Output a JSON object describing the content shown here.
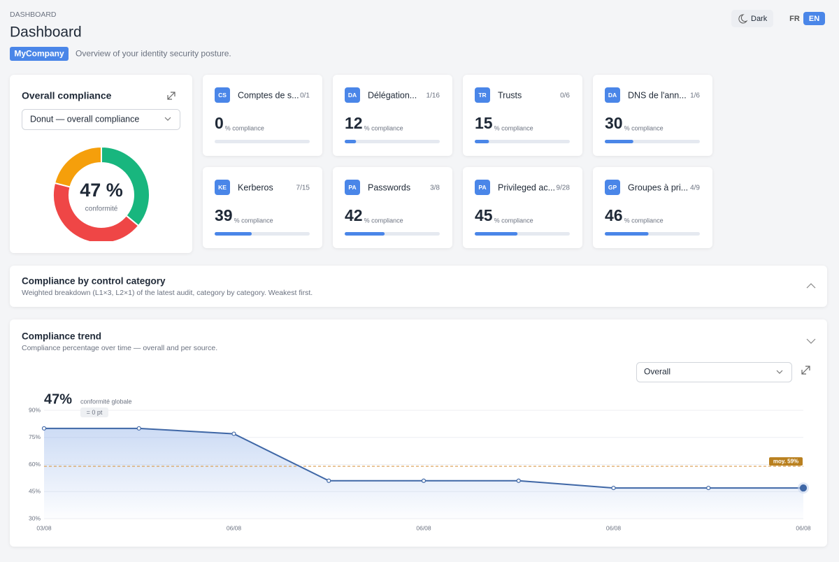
{
  "header": {
    "breadcrumb": "DASHBOARD",
    "title": "Dashboard",
    "company": "MyCompany",
    "subtitle": "Overview of your identity security posture."
  },
  "controls": {
    "theme": "Dark",
    "languages": [
      "FR",
      "EN"
    ],
    "active_language": 1
  },
  "cards": [
    {
      "badge": "CS",
      "name": "Comptes de s...",
      "ratio": "0/1",
      "value": 0,
      "unit": "% compliance"
    },
    {
      "badge": "DA",
      "name": "Délégation...",
      "ratio": "1/16",
      "value": 12,
      "unit": "% compliance"
    },
    {
      "badge": "TR",
      "name": "Trusts",
      "ratio": "0/6",
      "value": 15,
      "unit": "% compliance"
    },
    {
      "badge": "DA",
      "name": "DNS de l'ann...",
      "ratio": "1/6",
      "value": 30,
      "unit": "% compliance"
    },
    {
      "badge": "KE",
      "name": "Kerberos",
      "ratio": "7/15",
      "value": 39,
      "unit": "% compliance"
    },
    {
      "badge": "PA",
      "name": "Passwords",
      "ratio": "3/8",
      "value": 42,
      "unit": "% compliance"
    },
    {
      "badge": "PA",
      "name": "Privileged ac...",
      "ratio": "9/28",
      "value": 45,
      "unit": "% compliance"
    },
    {
      "badge": "GP",
      "name": "Groupes à pri...",
      "ratio": "4/9",
      "value": 46,
      "unit": "% compliance"
    }
  ],
  "category_section": {
    "title": "Compliance by control category",
    "subtitle": "Weighted breakdown (L1×3, L2×1) of the latest audit, category by category. Weakest first."
  },
  "chart_data": [
    {
      "type": "donut",
      "title": "Overall compliance",
      "selector": "Donut — overall compliance",
      "center_label": "47 %",
      "center_caption": "conformité",
      "values": [
        36,
        43,
        21
      ],
      "colors": [
        "#18b67e",
        "#ef4646",
        "#f59f0b"
      ]
    },
    {
      "type": "line",
      "title": "Compliance trend",
      "subtitle": "Compliance percentage over time — overall and per source.",
      "selector": "Overall",
      "headline": "47%",
      "headline_caption": "conformité globale",
      "delta": "= 0 pt",
      "categories": [
        "03/08",
        null,
        "06/08",
        null,
        "06/08",
        null,
        "06/08",
        null,
        "06/08"
      ],
      "values": [
        80,
        80,
        77,
        51,
        51,
        51,
        47,
        47,
        47
      ],
      "color": "#3f67a6",
      "ylim": [
        30,
        90
      ],
      "yticks": [
        {
          "value": 30,
          "label": "30%"
        },
        {
          "value": 45,
          "label": "45%"
        },
        {
          "value": 60,
          "label": "60%"
        },
        {
          "value": 75,
          "label": "75%"
        },
        {
          "value": 90,
          "label": "90%"
        }
      ],
      "grid": true,
      "average": {
        "value": 59,
        "label": "moy. 59%",
        "color": "#d89a4a"
      }
    }
  ]
}
